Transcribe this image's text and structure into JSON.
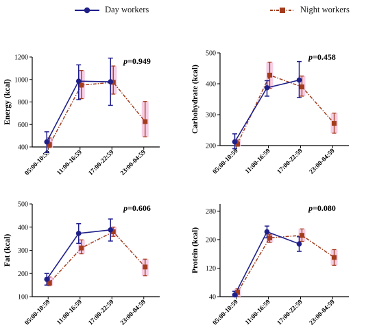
{
  "legend": {
    "day_label": "Day workers",
    "night_label": "Night workers"
  },
  "colors": {
    "day": "#1f1f8a",
    "night": "#a33c1d",
    "night_band": "#f4c6e0"
  },
  "chart_data": [
    {
      "type": "line",
      "ylabel": "Energy (kcal)",
      "ylim": [
        400,
        1200
      ],
      "yticks": [
        400,
        600,
        800,
        1000,
        1200
      ],
      "categories": [
        "05:00-10:59",
        "11:00-16:59",
        "17:00-22:59",
        "23:00-04:59"
      ],
      "annotation": {
        "prefix": "p",
        "value": "=0.949"
      },
      "series": [
        {
          "name": "Day workers",
          "values": [
            445,
            985,
            980,
            null
          ],
          "err_low": [
            350,
            820,
            770,
            null
          ],
          "err_high": [
            535,
            1130,
            1190,
            null
          ]
        },
        {
          "name": "Night workers",
          "values": [
            420,
            950,
            975,
            625
          ],
          "err_low": [
            395,
            830,
            870,
            490
          ],
          "err_high": [
            480,
            1080,
            1120,
            805
          ]
        }
      ]
    },
    {
      "type": "line",
      "ylabel": "Carbohydrate (kcal)",
      "ylim": [
        200,
        500
      ],
      "yticks": [
        200,
        300,
        400,
        500
      ],
      "categories": [
        "05:00-10:59",
        "11:00-16:59",
        "17:00-22:59",
        "23:00-04:59"
      ],
      "annotation": {
        "prefix": "p",
        "value": "=0.458"
      },
      "series": [
        {
          "name": "Day workers",
          "values": [
            212,
            387,
            412,
            null
          ],
          "err_low": [
            190,
            360,
            355,
            null
          ],
          "err_high": [
            238,
            410,
            472,
            null
          ]
        },
        {
          "name": "Night workers",
          "values": [
            205,
            428,
            390,
            272
          ],
          "err_low": [
            198,
            385,
            360,
            240
          ],
          "err_high": [
            218,
            470,
            425,
            305
          ]
        }
      ]
    },
    {
      "type": "line",
      "ylabel": "Fat (kcal)",
      "ylim": [
        100,
        500
      ],
      "yticks": [
        100,
        200,
        300,
        400,
        500
      ],
      "categories": [
        "05:00-10:59",
        "11:00-16:59",
        "17:00-22:59",
        "23:00-04:59"
      ],
      "annotation": {
        "prefix": "p",
        "value": "=0.606"
      },
      "series": [
        {
          "name": "Day workers",
          "values": [
            175,
            373,
            388,
            null
          ],
          "err_low": [
            150,
            330,
            340,
            null
          ],
          "err_high": [
            200,
            415,
            435,
            null
          ]
        },
        {
          "name": "Night workers",
          "values": [
            160,
            310,
            380,
            228
          ],
          "err_low": [
            148,
            285,
            360,
            190
          ],
          "err_high": [
            185,
            345,
            400,
            262
          ]
        }
      ]
    },
    {
      "type": "line",
      "ylabel": "Protein (kcal)",
      "ylim": [
        40,
        300
      ],
      "yticks": [
        40,
        120,
        200,
        280
      ],
      "categories": [
        "05:00-10:59",
        "11:00-16:59",
        "17:00-22:59",
        "23:00-04:59"
      ],
      "annotation": {
        "prefix": "p",
        "value": "=0.080"
      },
      "series": [
        {
          "name": "Day workers",
          "values": [
            45,
            222,
            188,
            null
          ],
          "err_low": [
            40,
            205,
            167,
            null
          ],
          "err_high": [
            55,
            238,
            208,
            null
          ]
        },
        {
          "name": "Night workers",
          "values": [
            52,
            205,
            212,
            150
          ],
          "err_low": [
            40,
            192,
            195,
            128
          ],
          "err_high": [
            62,
            215,
            230,
            172
          ]
        }
      ]
    }
  ]
}
